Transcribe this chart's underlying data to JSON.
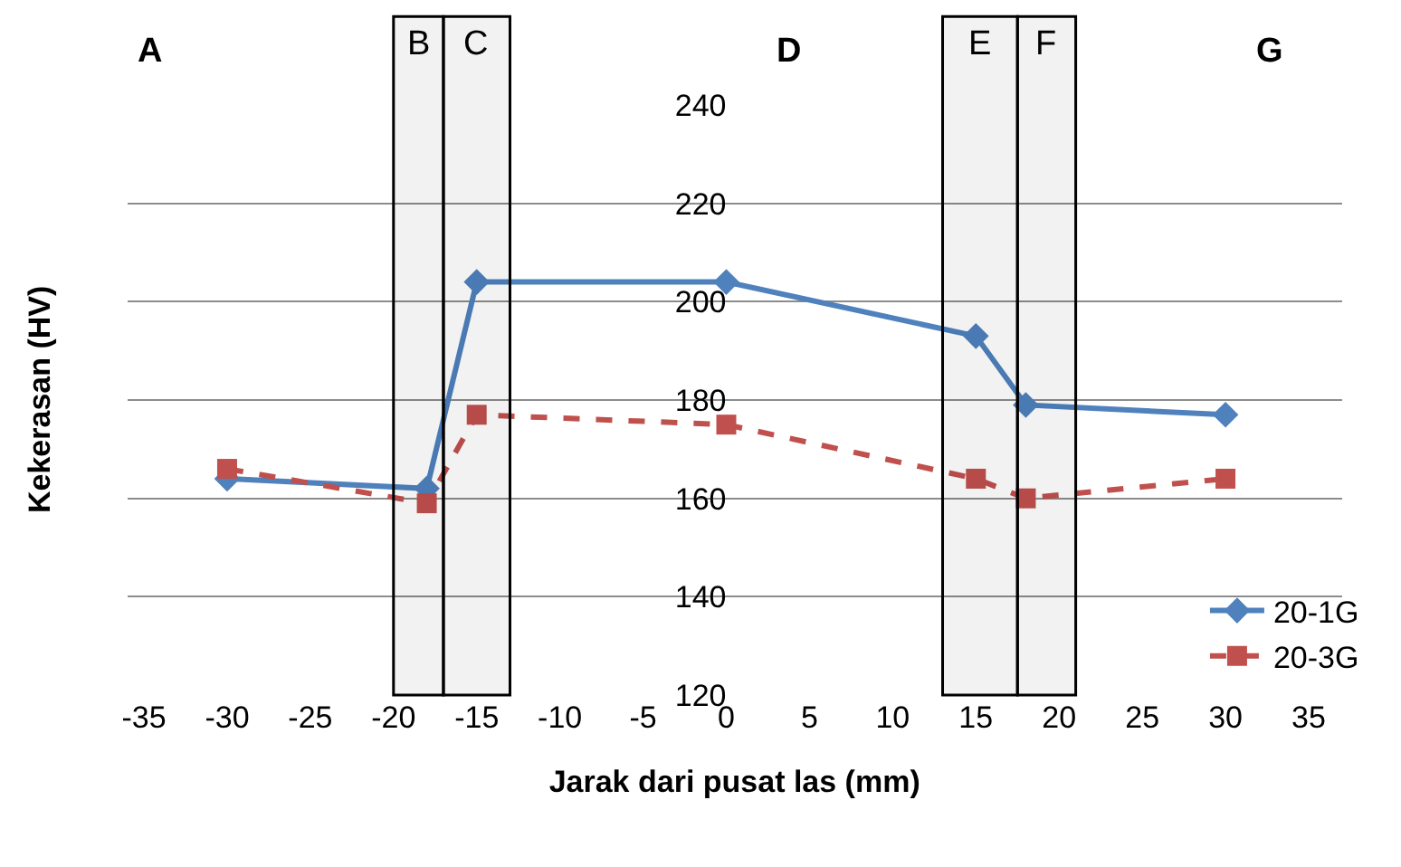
{
  "chart_data": {
    "type": "line",
    "xlabel": "Jarak dari pusat las (mm)",
    "ylabel": "Kekerasan (HV)",
    "x": [
      -30,
      -18,
      -15,
      0,
      15,
      18,
      30
    ],
    "series": [
      {
        "name": "20-1G",
        "color": "#4f81bd",
        "values": [
          164,
          162,
          204,
          204,
          193,
          179,
          177
        ],
        "marker": "diamond",
        "line_style": "solid"
      },
      {
        "name": "20-3G",
        "color": "#c0504d",
        "values": [
          166,
          159,
          177,
          175,
          164,
          160,
          164
        ],
        "marker": "square",
        "line_style": "dashed"
      }
    ],
    "xlim": [
      -36,
      37
    ],
    "xticks": [
      -35,
      -30,
      -25,
      -20,
      -15,
      -10,
      -5,
      0,
      5,
      10,
      15,
      20,
      25,
      30,
      35
    ],
    "ylim": [
      120,
      240
    ],
    "yticks": [
      120,
      140,
      160,
      180,
      200,
      220,
      240
    ],
    "bands": [
      {
        "axis": "x",
        "from": -20,
        "to": -17,
        "label": "B",
        "color": "#000000"
      },
      {
        "axis": "x",
        "from": -17,
        "to": -13,
        "label": "C",
        "color": "#000000"
      },
      {
        "axis": "x",
        "from": 13,
        "to": 17.5,
        "label": "E",
        "color": "#000000"
      },
      {
        "axis": "x",
        "from": 17.5,
        "to": 21,
        "label": "F",
        "color": "#000000"
      }
    ],
    "annotations": [
      "A",
      "D",
      "G"
    ],
    "grid": "y",
    "legend": "bottom right"
  }
}
